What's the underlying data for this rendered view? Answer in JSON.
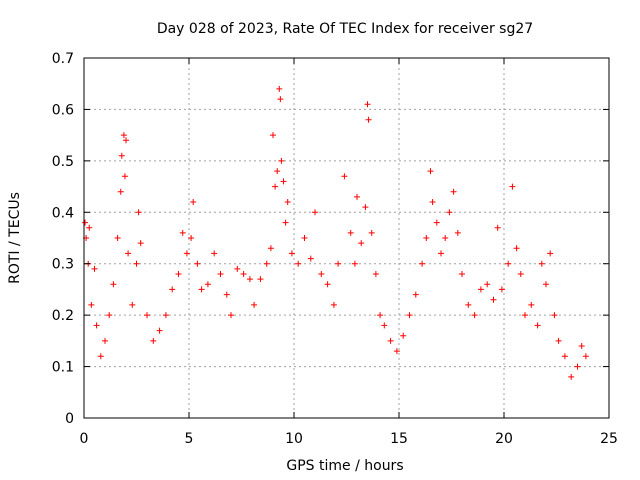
{
  "chart_data": {
    "type": "scatter",
    "title": "Day 028 of 2023, Rate Of TEC Index for receiver sg27",
    "xlabel": "GPS time / hours",
    "ylabel": "ROTI / TECUs",
    "xlim": [
      0,
      25
    ],
    "ylim": [
      0,
      0.7
    ],
    "xticks": [
      0,
      5,
      10,
      15,
      20,
      25
    ],
    "yticks": [
      0,
      0.1,
      0.2,
      0.3,
      0.4,
      0.5,
      0.6,
      0.7
    ],
    "xtick_labels": [
      "0",
      "5",
      "10",
      "15",
      "20",
      "25"
    ],
    "ytick_labels": [
      "0",
      "0.1",
      "0.2",
      "0.3",
      "0.4",
      "0.5",
      "0.6",
      "0.7"
    ],
    "grid": true,
    "marker": "+",
    "color": "#ff0000",
    "series": [
      {
        "points": [
          [
            0.05,
            0.38
          ],
          [
            0.1,
            0.35
          ],
          [
            0.2,
            0.3
          ],
          [
            0.25,
            0.37
          ],
          [
            0.35,
            0.22
          ],
          [
            0.5,
            0.29
          ],
          [
            0.6,
            0.18
          ],
          [
            0.8,
            0.12
          ],
          [
            1.0,
            0.15
          ],
          [
            1.2,
            0.2
          ],
          [
            1.4,
            0.26
          ],
          [
            1.6,
            0.35
          ],
          [
            1.75,
            0.44
          ],
          [
            1.8,
            0.51
          ],
          [
            1.9,
            0.55
          ],
          [
            2.0,
            0.54
          ],
          [
            1.95,
            0.47
          ],
          [
            2.1,
            0.32
          ],
          [
            2.3,
            0.22
          ],
          [
            2.5,
            0.3
          ],
          [
            2.6,
            0.4
          ],
          [
            2.7,
            0.34
          ],
          [
            3.0,
            0.2
          ],
          [
            3.3,
            0.15
          ],
          [
            3.6,
            0.17
          ],
          [
            3.9,
            0.2
          ],
          [
            4.2,
            0.25
          ],
          [
            4.5,
            0.28
          ],
          [
            4.7,
            0.36
          ],
          [
            4.9,
            0.32
          ],
          [
            5.1,
            0.35
          ],
          [
            5.2,
            0.42
          ],
          [
            5.4,
            0.3
          ],
          [
            5.6,
            0.25
          ],
          [
            5.9,
            0.26
          ],
          [
            6.2,
            0.32
          ],
          [
            6.5,
            0.28
          ],
          [
            6.8,
            0.24
          ],
          [
            7.0,
            0.2
          ],
          [
            7.3,
            0.29
          ],
          [
            7.6,
            0.28
          ],
          [
            7.9,
            0.27
          ],
          [
            8.1,
            0.22
          ],
          [
            8.4,
            0.27
          ],
          [
            8.7,
            0.3
          ],
          [
            8.9,
            0.33
          ],
          [
            9.0,
            0.55
          ],
          [
            9.1,
            0.45
          ],
          [
            9.2,
            0.48
          ],
          [
            9.3,
            0.64
          ],
          [
            9.35,
            0.62
          ],
          [
            9.4,
            0.5
          ],
          [
            9.5,
            0.46
          ],
          [
            9.6,
            0.38
          ],
          [
            9.7,
            0.42
          ],
          [
            9.9,
            0.32
          ],
          [
            10.2,
            0.3
          ],
          [
            10.5,
            0.35
          ],
          [
            10.8,
            0.31
          ],
          [
            11.0,
            0.4
          ],
          [
            11.3,
            0.28
          ],
          [
            11.6,
            0.26
          ],
          [
            11.9,
            0.22
          ],
          [
            12.1,
            0.3
          ],
          [
            12.4,
            0.47
          ],
          [
            12.7,
            0.36
          ],
          [
            12.9,
            0.3
          ],
          [
            13.0,
            0.43
          ],
          [
            13.2,
            0.34
          ],
          [
            13.4,
            0.41
          ],
          [
            13.5,
            0.61
          ],
          [
            13.55,
            0.58
          ],
          [
            13.7,
            0.36
          ],
          [
            13.9,
            0.28
          ],
          [
            14.1,
            0.2
          ],
          [
            14.3,
            0.18
          ],
          [
            14.6,
            0.15
          ],
          [
            14.9,
            0.13
          ],
          [
            15.2,
            0.16
          ],
          [
            15.5,
            0.2
          ],
          [
            15.8,
            0.24
          ],
          [
            16.1,
            0.3
          ],
          [
            16.3,
            0.35
          ],
          [
            16.5,
            0.48
          ],
          [
            16.6,
            0.42
          ],
          [
            16.8,
            0.38
          ],
          [
            17.0,
            0.32
          ],
          [
            17.2,
            0.35
          ],
          [
            17.4,
            0.4
          ],
          [
            17.6,
            0.44
          ],
          [
            17.8,
            0.36
          ],
          [
            18.0,
            0.28
          ],
          [
            18.3,
            0.22
          ],
          [
            18.6,
            0.2
          ],
          [
            18.9,
            0.25
          ],
          [
            19.2,
            0.26
          ],
          [
            19.5,
            0.23
          ],
          [
            19.7,
            0.37
          ],
          [
            19.9,
            0.25
          ],
          [
            20.2,
            0.3
          ],
          [
            20.4,
            0.45
          ],
          [
            20.6,
            0.33
          ],
          [
            20.8,
            0.28
          ],
          [
            21.0,
            0.2
          ],
          [
            21.3,
            0.22
          ],
          [
            21.6,
            0.18
          ],
          [
            21.8,
            0.3
          ],
          [
            22.0,
            0.26
          ],
          [
            22.2,
            0.32
          ],
          [
            22.4,
            0.2
          ],
          [
            22.6,
            0.15
          ],
          [
            22.9,
            0.12
          ],
          [
            23.2,
            0.08
          ],
          [
            23.5,
            0.1
          ],
          [
            23.7,
            0.14
          ],
          [
            23.9,
            0.12
          ]
        ]
      }
    ]
  }
}
